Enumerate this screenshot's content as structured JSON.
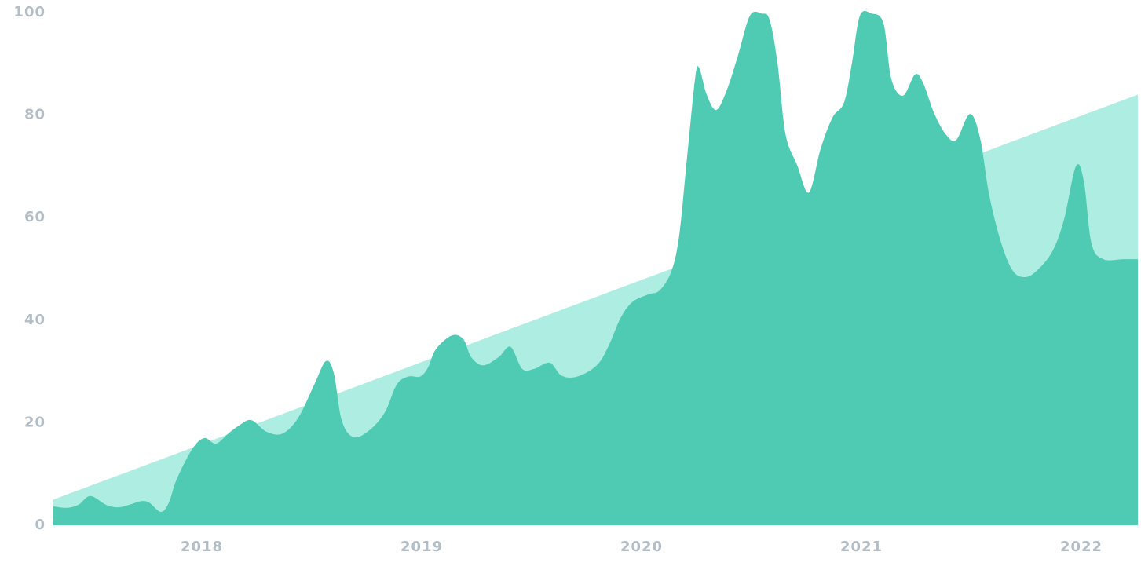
{
  "chart_data": {
    "type": "area",
    "xlim": [
      2017.325,
      2022.257
    ],
    "xticks": [
      2018,
      2019,
      2020,
      2021,
      2022
    ],
    "ylim": [
      0,
      100
    ],
    "yticks": [
      0,
      20,
      40,
      60,
      80,
      100
    ],
    "series": [
      {
        "color": "#aeede2",
        "x": [
          2017.325,
          2022.257
        ],
        "values": [
          5,
          84
        ]
      },
      {
        "color": "#4fcbb3",
        "x": [
          2017.325,
          2017.386,
          2017.439,
          2017.493,
          2017.564,
          2017.618,
          2017.671,
          2017.725,
          2017.761,
          2017.814,
          2017.85,
          2017.886,
          2017.957,
          2018.011,
          2018.064,
          2018.118,
          2018.171,
          2018.225,
          2018.296,
          2018.368,
          2018.439,
          2018.511,
          2018.564,
          2018.6,
          2018.636,
          2018.689,
          2018.761,
          2018.832,
          2018.886,
          2018.939,
          2018.993,
          2019.029,
          2019.064,
          2019.136,
          2019.189,
          2019.225,
          2019.279,
          2019.35,
          2019.404,
          2019.457,
          2019.511,
          2019.582,
          2019.636,
          2019.707,
          2019.796,
          2019.85,
          2019.904,
          2019.957,
          2020.029,
          2020.082,
          2020.136,
          2020.171,
          2020.207,
          2020.243,
          2020.261,
          2020.296,
          2020.339,
          2020.386,
          2020.439,
          2020.493,
          2020.546,
          2020.582,
          2020.618,
          2020.654,
          2020.707,
          2020.761,
          2020.814,
          2020.868,
          2020.921,
          2020.957,
          2020.993,
          2021.046,
          2021.1,
          2021.136,
          2021.189,
          2021.243,
          2021.279,
          2021.332,
          2021.386,
          2021.432,
          2021.493,
          2021.539,
          2021.582,
          2021.636,
          2021.689,
          2021.743,
          2021.796,
          2021.868,
          2021.921,
          2021.975,
          2022.011,
          2022.046,
          2022.1,
          2022.189,
          2022.257
        ],
        "values": [
          3.7,
          3.4,
          4,
          5.7,
          4,
          3.5,
          4,
          4.7,
          4.4,
          2.6,
          4.4,
          9,
          14.9,
          17,
          15.9,
          17.8,
          19.5,
          20.5,
          18.2,
          17.9,
          21,
          27.4,
          32,
          29.7,
          20.5,
          17.2,
          18.5,
          22,
          27.4,
          29,
          29,
          30.8,
          34.3,
          37,
          36.3,
          32.8,
          31.2,
          32.8,
          34.8,
          30.5,
          30.5,
          31.7,
          29.2,
          29,
          31.2,
          35,
          40.4,
          43.5,
          45,
          45.8,
          49.6,
          56.5,
          71.8,
          87,
          89.3,
          84,
          81,
          84.7,
          91.7,
          99.4,
          99.8,
          98.6,
          90.2,
          76.4,
          70.3,
          64.9,
          73.4,
          79.5,
          82.5,
          90.2,
          99.4,
          99.8,
          97.9,
          87,
          83.8,
          87.9,
          86.4,
          80.2,
          76.1,
          75.2,
          80.2,
          75.6,
          64.2,
          55,
          49.6,
          48.4,
          49.6,
          53.4,
          59.6,
          70,
          67.2,
          55,
          51.9,
          51.9,
          51.9
        ]
      }
    ]
  }
}
